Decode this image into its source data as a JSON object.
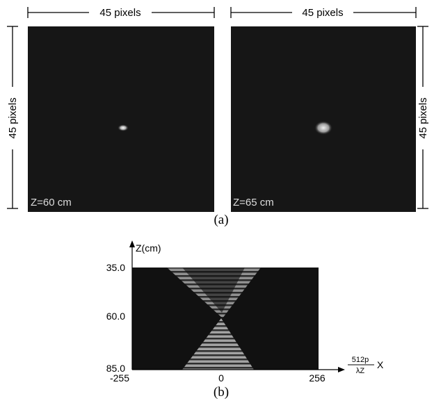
{
  "panel_a": {
    "images": [
      {
        "width_label": "45 pixels",
        "height_label": "45 pixels",
        "z_label": "Z=60 cm"
      },
      {
        "width_label": "45 pixels",
        "height_label": "45 pixels",
        "z_label": "Z=65 cm"
      }
    ],
    "caption": "(a)"
  },
  "panel_b": {
    "y_axis_label": "Z(cm)",
    "y_ticks": [
      "35.0",
      "60.0",
      "85.0"
    ],
    "x_ticks": [
      "-255",
      "0",
      "256"
    ],
    "x_axis_label": {
      "numerator": "512p",
      "denominator": "λZ",
      "variable": "X"
    },
    "caption": "(b)"
  }
}
